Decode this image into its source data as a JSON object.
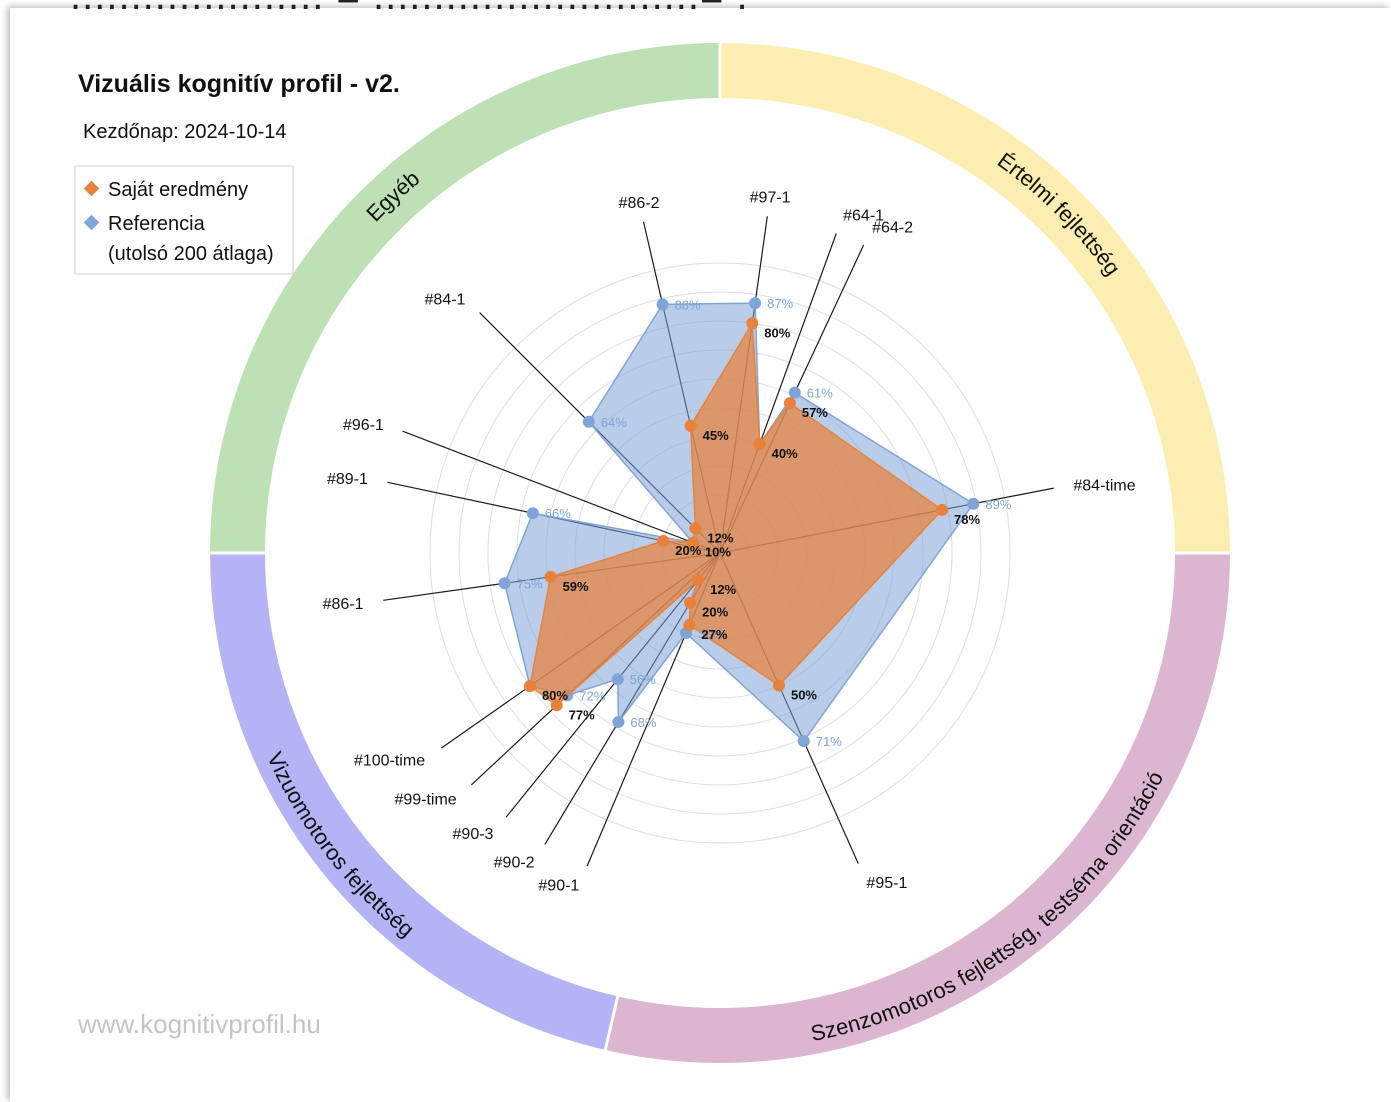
{
  "page": {
    "header_fragment": "..................... = ...........................= ."
  },
  "chart_data": {
    "type": "radar",
    "title": "Vizuális kognitív profil - v2.",
    "subtitle": "Kezdőnap: 2024-10-14",
    "footer": "www.kognitivprofil.hu",
    "legend": {
      "placement": "top-left",
      "entries": [
        {
          "label": "Saját eredmény",
          "color": "#e8823a"
        },
        {
          "label": "Referencia",
          "label2": "(utolsó 200 átlaga)",
          "color": "#7fa4d8"
        }
      ]
    },
    "sectors": [
      {
        "name": "Értelmi fejlettség",
        "color": "#fbeeb0"
      },
      {
        "name": "Szenzomotoros fejlettség, testséma orientáció",
        "color": "#dcb6d1"
      },
      {
        "name": "Vizuomotoros fejlettség",
        "color": "#b3b3f6"
      },
      {
        "name": "Egyéb",
        "color": "#bde0b5"
      }
    ],
    "axes": [
      {
        "label": "#97-1",
        "angle": 8
      },
      {
        "label": "#64-1",
        "angle": 20
      },
      {
        "label": "#64-2",
        "angle": 25
      },
      {
        "label": "#84-time",
        "angle": 79
      },
      {
        "label": "#95-1",
        "angle": 156
      },
      {
        "label": "#90-1",
        "angle": 203
      },
      {
        "label": "#90-2",
        "angle": 211
      },
      {
        "label": "#90-3",
        "angle": 219
      },
      {
        "label": "#99-time",
        "angle": 227
      },
      {
        "label": "#100-time",
        "angle": 235
      },
      {
        "label": "#86-1",
        "angle": 262
      },
      {
        "label": "#89-1",
        "angle": 282
      },
      {
        "label": "#96-1",
        "angle": 291
      },
      {
        "label": "#84-1",
        "angle": 315
      },
      {
        "label": "#86-2",
        "angle": 347
      }
    ],
    "series": [
      {
        "name": "Saját eredmény",
        "color": "#e8823a",
        "values": [
          80,
          40,
          57,
          78,
          50,
          27,
          20,
          12,
          77,
          80,
          59,
          20,
          10,
          12,
          45
        ],
        "labels": [
          "80%",
          "40%",
          "57%",
          "78%",
          "50%",
          "27%",
          "20%",
          "12%",
          "77%",
          "80%",
          "59%",
          "20%",
          "10%",
          "12%",
          "45%"
        ]
      },
      {
        "name": "Referencia",
        "color": "#7fa4d8",
        "values": [
          87,
          40,
          61,
          89,
          71,
          30,
          68,
          56,
          72,
          80,
          75,
          66,
          10,
          64,
          88
        ],
        "labels": [
          "87%",
          "",
          "61%",
          "89%",
          "71%",
          "30%",
          "68%",
          "56%",
          "72%",
          "",
          "75%",
          "66%",
          "",
          "64%",
          "88%"
        ]
      }
    ],
    "rmax": 100,
    "grid": true
  }
}
